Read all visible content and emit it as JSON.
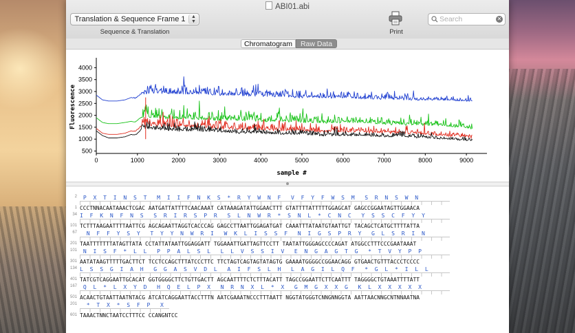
{
  "window": {
    "title": "ABI01.abi"
  },
  "toolbar": {
    "frame_popup": "Translation & Sequence Frame 1",
    "frame_subtitle": "Sequence & Translation",
    "print_label": "Print",
    "search_placeholder": "Search"
  },
  "tabs": {
    "chromatogram": "Chromatogram",
    "raw_data": "Raw Data",
    "selected": "Chromatogram"
  },
  "icons": {
    "print": "printer-icon",
    "search": "magnifier-icon",
    "clear": "clear-icon",
    "document": "document-icon"
  },
  "chart_data": {
    "type": "line",
    "title": "",
    "xlabel": "sample #",
    "ylabel": "Fluorescence",
    "xlim": [
      0,
      9500
    ],
    "ylim": [
      400,
      4300
    ],
    "xticks": [
      0,
      1000,
      2000,
      3000,
      4000,
      5000,
      6000,
      7000,
      8000,
      9000
    ],
    "yticks": [
      500,
      1000,
      1500,
      2000,
      2500,
      3000,
      3500,
      4000
    ],
    "grid": false,
    "series": [
      {
        "color": "#1f3fd0",
        "x": [
          0,
          150,
          300,
          500,
          700,
          850,
          950,
          1100,
          1200,
          1500,
          2000,
          2500,
          3000,
          3500,
          4000,
          4500,
          5000,
          5500,
          6000,
          6500,
          7000,
          7500,
          8000,
          8500,
          9000,
          9150
        ],
        "y": [
          2850,
          2650,
          2600,
          2600,
          2650,
          2750,
          2700,
          2900,
          2900,
          2950,
          2900,
          2900,
          2850,
          2850,
          2800,
          2800,
          2750,
          2750,
          2750,
          2700,
          2700,
          2650,
          2650,
          2650,
          2600,
          2600
        ]
      },
      {
        "color": "#18c218",
        "x": [
          0,
          150,
          300,
          500,
          700,
          850,
          950,
          1100,
          1200,
          1500,
          2000,
          2500,
          3000,
          3500,
          4000,
          4500,
          5000,
          5500,
          6000,
          6500,
          7000,
          7500,
          8000,
          8500,
          9000,
          9150
        ],
        "y": [
          1900,
          1700,
          1650,
          1650,
          1700,
          1750,
          1700,
          1900,
          1950,
          1900,
          1850,
          1850,
          1800,
          1800,
          1750,
          1750,
          1700,
          1700,
          1700,
          1700,
          1650,
          1600,
          1600,
          1550,
          1500,
          1450
        ]
      },
      {
        "color": "#e02a1c",
        "x": [
          0,
          150,
          300,
          500,
          700,
          850,
          950,
          1100,
          1200,
          1500,
          2000,
          2500,
          3000,
          3500,
          4000,
          4500,
          5000,
          5500,
          6000,
          6500,
          7000,
          7500,
          8000,
          8500,
          9000,
          9150
        ],
        "y": [
          1450,
          1250,
          1200,
          1200,
          1250,
          1350,
          1300,
          1550,
          1600,
          1550,
          1500,
          1500,
          1450,
          1400,
          1400,
          1350,
          1350,
          1300,
          1300,
          1300,
          1250,
          1250,
          1200,
          1150,
          1100,
          1050
        ]
      },
      {
        "color": "#111111",
        "x": [
          0,
          150,
          300,
          500,
          700,
          850,
          950,
          1100,
          1200,
          1500,
          2000,
          2500,
          3000,
          3500,
          4000,
          4500,
          5000,
          5500,
          6000,
          6500,
          7000,
          7500,
          8000,
          8500,
          9000,
          9150
        ],
        "y": [
          1350,
          1150,
          1050,
          1050,
          1100,
          1200,
          1150,
          1400,
          1450,
          1400,
          1350,
          1350,
          1300,
          1250,
          1250,
          1200,
          1200,
          1150,
          1150,
          1150,
          1100,
          1100,
          1050,
          1000,
          950,
          950
        ]
      }
    ]
  },
  "sequence": {
    "rows": [
      {
        "aa_num": "2",
        "aa": " P  X  T  I  N  S  T   M  I  I  F  N  K  S  *  R  Y  W  N  F   V  F  Y  F  W  S  M   S  R  N  S  W  N",
        "nt_num": "1",
        "nt": "CCCTNNACAATAAACTCGAC AATGATTATTTTCAACAAAT CATAAAGATATTGGAACTTT GTATTTTATTTTTGGAGCAT GAGCCGGAATAGTTGGAACA"
      },
      {
        "aa_num": "34",
        "aa": "I  F  K  N  F  N  S   S  R  I  R  S  P  R   S  L  N  W  R  *  S  N  L  *  C  N  C   Y  S  S  C  F  Y  Y",
        "nt_num": "101",
        "nt": "TCTTTAAGAATTTTAATTCG AGCAGAATTAGGTCACCCAG GAGCCTTAATTGGAGATGAT CAAATTTATAATGTAATTGT TACAGCTCATGCTTTTATTA"
      },
      {
        "aa_num": "67",
        "aa": "  N  F  F  Y  S  Y   T  Y  Y  N  W  R  I   W  K  L  I  S  S  F   N  I  G  S  P  R  Y   G  L  S  R  I  N",
        "nt_num": "201",
        "nt": "TAATTTTTTTATAGTTATA CCTATTATAATTGGAGGATT TGGAAATTGATTAGTTCCTT TAATATTGGGAGCCCCAGAT ATGGCCTTTCCCGAATAAAT"
      },
      {
        "aa_num": "101",
        "aa": " N  I  S  F  *  L  L   P  P  A  L  S  L   L  L  V  S  S  I  V   E  N  G  A  G  T  G   *  T  V  Y  P  P",
        "nt_num": "301",
        "nt": "AATATAAGTTTTTGACTTCT TCCTCCAGCTTTATCCCTTC TTCTAGTCAGTAGTATAGTG GAAAATGGGGCCGGAACAGG GTGAACTGTTTACCCTCCCC"
      },
      {
        "aa_num": "134",
        "aa": "L  S  S  G  I  A  H   G  G  A  S  V  D  L   A  I  F  S  L  H   L  A  G  I  L  Q  F   *  G  L  *  I  L  L",
        "nt_num": "401",
        "nt": "TATCGTCAGGAATTGCACAT GGTGGGGCTTCTGTTGACTT AGCAATTTTCTCTTTACATT TAGCCGGAATTCTTCAATTT TAGGGGCTGTAAATTTTATT"
      },
      {
        "aa_num": "167",
        "aa": " Q  L  *  L  X  Y  D   H  Q  E  L  P  X   N  R  N  X  L  *  X   G  M  G  X  X  G   K  L  X  X  X  X  X",
        "nt_num": "501",
        "nt": "ACAACTGTAATTAATNTACG ATCATCAGGAATTACCTTTN AATCGAAATNCCCTTTAATT NGGTATGGGTCNNGNNGGTA AATTAACNNGCNTNNAATNA"
      },
      {
        "aa_num": "201",
        "aa": "  *  T  X  *  S  F  P   X",
        "nt_num": "601",
        "nt": "TAAACTNNCTAATCCTTTCC CCANGNTCC"
      }
    ]
  }
}
